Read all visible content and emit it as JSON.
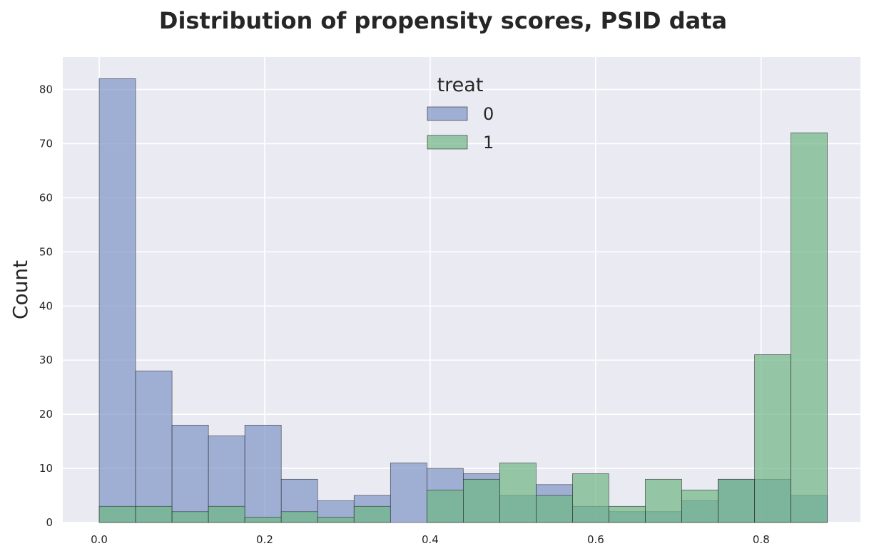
{
  "chart_data": {
    "type": "bar",
    "title": "Distribution of propensity scores, PSID data",
    "xlabel": "",
    "ylabel": "Count",
    "xlim": [
      -0.044,
      0.92
    ],
    "ylim": [
      0,
      86
    ],
    "x_ticks": [
      0.0,
      0.2,
      0.4,
      0.6,
      0.8
    ],
    "x_tick_labels": [
      "0.0",
      "0.2",
      "0.4",
      "0.6",
      "0.8"
    ],
    "y_ticks": [
      0,
      10,
      20,
      30,
      40,
      50,
      60,
      70,
      80
    ],
    "grid": true,
    "bins": [
      [
        0.0,
        0.044
      ],
      [
        0.044,
        0.088
      ],
      [
        0.088,
        0.132
      ],
      [
        0.132,
        0.176
      ],
      [
        0.176,
        0.22
      ],
      [
        0.22,
        0.264
      ],
      [
        0.264,
        0.308
      ],
      [
        0.308,
        0.352
      ],
      [
        0.352,
        0.396
      ],
      [
        0.396,
        0.44
      ],
      [
        0.44,
        0.484
      ],
      [
        0.484,
        0.528
      ],
      [
        0.528,
        0.572
      ],
      [
        0.572,
        0.616
      ],
      [
        0.616,
        0.66
      ],
      [
        0.66,
        0.704
      ],
      [
        0.704,
        0.748
      ],
      [
        0.748,
        0.792
      ],
      [
        0.792,
        0.836
      ],
      [
        0.836,
        0.88
      ]
    ],
    "legend": {
      "title": "treat",
      "placement": "top-center"
    },
    "series": [
      {
        "name": "0",
        "color": "#7f96c8",
        "values": [
          82,
          28,
          18,
          16,
          18,
          8,
          4,
          5,
          11,
          10,
          9,
          5,
          7,
          3,
          2,
          2,
          4,
          8,
          8,
          5
        ]
      },
      {
        "name": "1",
        "color": "#6fb685",
        "values": [
          3,
          3,
          2,
          3,
          1,
          2,
          1,
          3,
          0,
          6,
          8,
          11,
          5,
          9,
          3,
          8,
          6,
          8,
          31,
          72
        ]
      }
    ],
    "colors": {
      "background": "#eaeaf2",
      "grid": "#ffffff",
      "edge": "#262626"
    }
  }
}
